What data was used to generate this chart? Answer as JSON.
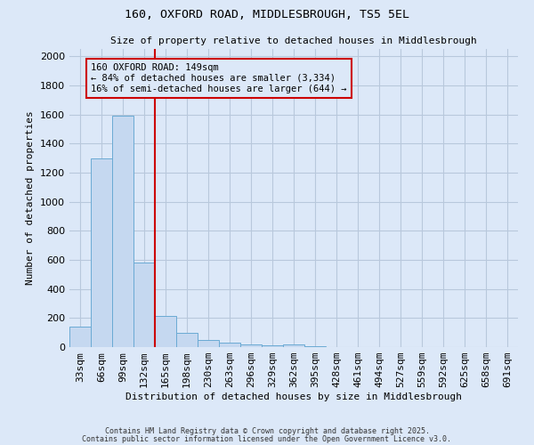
{
  "title1": "160, OXFORD ROAD, MIDDLESBROUGH, TS5 5EL",
  "title2": "Size of property relative to detached houses in Middlesbrough",
  "xlabel": "Distribution of detached houses by size in Middlesbrough",
  "ylabel": "Number of detached properties",
  "bin_labels": [
    "33sqm",
    "66sqm",
    "99sqm",
    "132sqm",
    "165sqm",
    "198sqm",
    "230sqm",
    "263sqm",
    "296sqm",
    "329sqm",
    "362sqm",
    "395sqm",
    "428sqm",
    "461sqm",
    "494sqm",
    "527sqm",
    "559sqm",
    "592sqm",
    "625sqm",
    "658sqm",
    "691sqm"
  ],
  "bar_values": [
    140,
    1295,
    1590,
    580,
    215,
    100,
    52,
    28,
    18,
    15,
    18,
    5,
    2,
    1,
    1,
    0,
    0,
    0,
    0,
    0,
    0
  ],
  "bar_color": "#c5d8f0",
  "bar_edge_color": "#6aaad4",
  "grid_color": "#b8c8dc",
  "bg_color": "#dce8f8",
  "plot_bg_color": "#dce8f8",
  "vline_color": "#cc0000",
  "vline_x": 3.5,
  "annotation_text": "160 OXFORD ROAD: 149sqm\n← 84% of detached houses are smaller (3,334)\n16% of semi-detached houses are larger (644) →",
  "annotation_box_color": "#cc0000",
  "ylim": [
    0,
    2050
  ],
  "yticks": [
    0,
    200,
    400,
    600,
    800,
    1000,
    1200,
    1400,
    1600,
    1800,
    2000
  ],
  "footer1": "Contains HM Land Registry data © Crown copyright and database right 2025.",
  "footer2": "Contains public sector information licensed under the Open Government Licence v3.0."
}
